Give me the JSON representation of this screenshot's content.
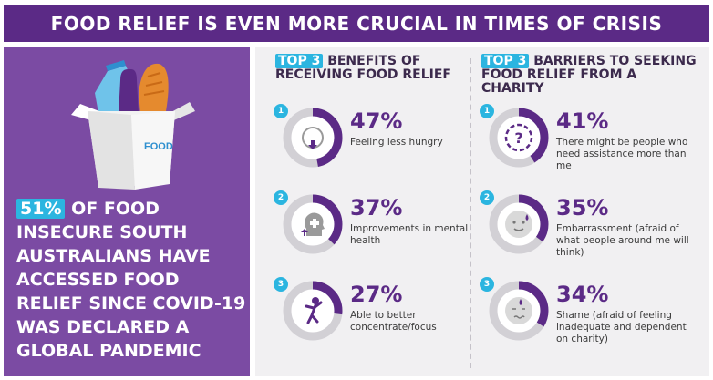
{
  "banner": {
    "title": "FOOD RELIEF IS EVEN MORE CRUCIAL IN TIMES OF CRISIS"
  },
  "left_panel": {
    "box_label": "FOOD",
    "highlight_pct": "51%",
    "headline_text": " OF FOOD INSECURE SOUTH AUSTRALIANS HAVE ACCESSED FOOD RELIEF SINCE COVID-19 WAS DECLARED A GLOBAL PANDEMIC"
  },
  "colors": {
    "banner_purple": "#5b2a86",
    "panel_purple": "#7b4ba3",
    "accent_blue": "#2bb5e0",
    "ring_purple": "#5b2a86",
    "ring_track": "#d2d0d5"
  },
  "benefits": {
    "chip": "TOP 3",
    "title_rest": " BENEFITS OF RECEIVING FOOD RELIEF",
    "items": [
      {
        "num": "1",
        "pct": "47%",
        "value": 0.47,
        "desc": "Feeling less hungry",
        "icon": "stomach-down-icon"
      },
      {
        "num": "2",
        "pct": "37%",
        "value": 0.37,
        "desc": "Improvements in mental health",
        "icon": "head-plus-icon"
      },
      {
        "num": "3",
        "pct": "27%",
        "value": 0.27,
        "desc": "Able to better concentrate/focus",
        "icon": "person-cheer-icon"
      }
    ]
  },
  "barriers": {
    "chip": "TOP 3",
    "title_rest": " BARRIERS TO SEEKING FOOD RELIEF FROM A CHARITY",
    "items": [
      {
        "num": "1",
        "pct": "41%",
        "value": 0.41,
        "desc": "There might be people who need assistance more than me",
        "icon": "question-icon"
      },
      {
        "num": "2",
        "pct": "35%",
        "value": 0.35,
        "desc": "Embarrassment (afraid of what people around me will think)",
        "icon": "embarrassed-face-icon"
      },
      {
        "num": "3",
        "pct": "34%",
        "value": 0.34,
        "desc": "Shame (afraid of feeling inadequate and dependent on charity)",
        "icon": "ashamed-face-icon"
      }
    ]
  }
}
